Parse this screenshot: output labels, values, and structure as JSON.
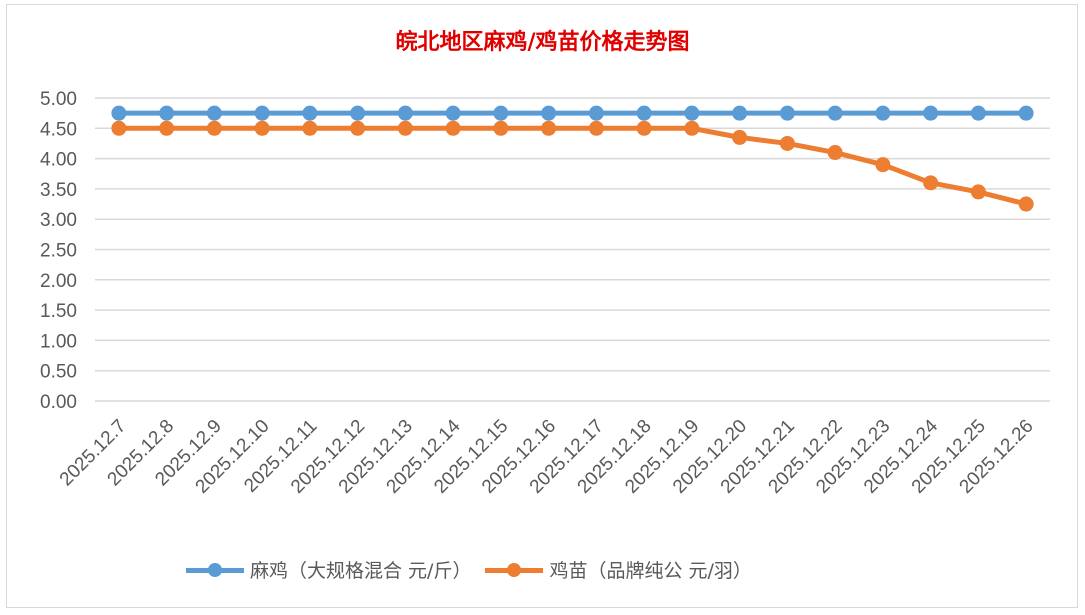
{
  "chart_data": {
    "type": "line",
    "title": "皖北地区麻鸡/鸡苗价格走势图",
    "categories": [
      "2025.12.7",
      "2025.12.8",
      "2025.12.9",
      "2025.12.10",
      "2025.12.11",
      "2025.12.12",
      "2025.12.13",
      "2025.12.14",
      "2025.12.15",
      "2025.12.16",
      "2025.12.17",
      "2025.12.18",
      "2025.12.19",
      "2025.12.20",
      "2025.12.21",
      "2025.12.22",
      "2025.12.23",
      "2025.12.24",
      "2025.12.25",
      "2025.12.26"
    ],
    "series": [
      {
        "name": "麻鸡（大规格混合 元/斤）",
        "color": "#5b9bd5",
        "values": [
          4.75,
          4.75,
          4.75,
          4.75,
          4.75,
          4.75,
          4.75,
          4.75,
          4.75,
          4.75,
          4.75,
          4.75,
          4.75,
          4.75,
          4.75,
          4.75,
          4.75,
          4.75,
          4.75,
          4.75
        ]
      },
      {
        "name": "鸡苗（品牌纯公 元/羽）",
        "color": "#ed7d31",
        "values": [
          4.5,
          4.5,
          4.5,
          4.5,
          4.5,
          4.5,
          4.5,
          4.5,
          4.5,
          4.5,
          4.5,
          4.5,
          4.5,
          4.35,
          4.25,
          4.1,
          3.9,
          3.6,
          3.45,
          3.25
        ]
      }
    ],
    "yticks": [
      "0.00",
      "0.50",
      "1.00",
      "1.50",
      "2.00",
      "2.50",
      "3.00",
      "3.50",
      "4.00",
      "4.50",
      "5.00"
    ],
    "ylim": [
      0,
      5
    ],
    "grid": true,
    "legend": "bottom",
    "xlabel": "",
    "ylabel": ""
  }
}
